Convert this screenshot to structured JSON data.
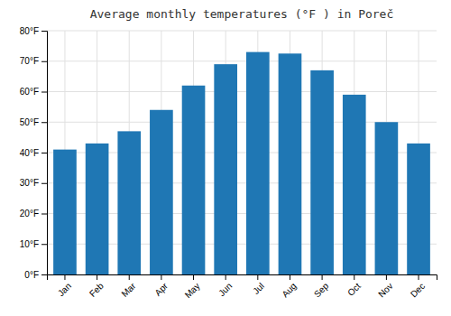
{
  "chart_data": {
    "type": "bar",
    "title": "Average monthly temperatures (°F ) in Poreč",
    "categories": [
      "Jan",
      "Feb",
      "Mar",
      "Apr",
      "May",
      "Jun",
      "Jul",
      "Aug",
      "Sep",
      "Oct",
      "Nov",
      "Dec"
    ],
    "values": [
      41,
      43,
      47,
      54,
      62,
      69,
      73,
      72.5,
      67,
      59,
      50,
      43
    ],
    "ylim": [
      0,
      80
    ],
    "yticks": [
      {
        "value": 0,
        "label": "0°F"
      },
      {
        "value": 10,
        "label": "10°F"
      },
      {
        "value": 20,
        "label": "20°F"
      },
      {
        "value": 30,
        "label": "30°F"
      },
      {
        "value": 40,
        "label": "40°F"
      },
      {
        "value": 50,
        "label": "50°F"
      },
      {
        "value": 60,
        "label": "60°F"
      },
      {
        "value": 70,
        "label": "70°F"
      },
      {
        "value": 80,
        "label": "80°F"
      }
    ],
    "grid": true
  }
}
